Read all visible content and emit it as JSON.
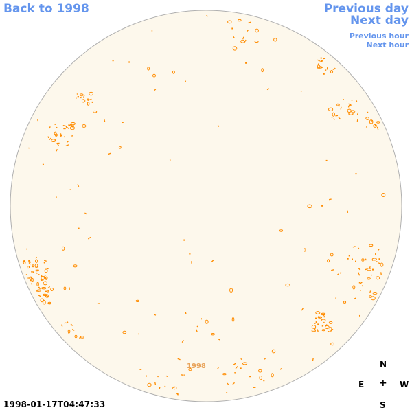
{
  "navigation": {
    "back_label": "Back to 1998",
    "previous_day_label": "Previous day",
    "next_day_label": "Next day",
    "previous_hour_label": "Previous hour",
    "next_hour_label": "Next hour",
    "link_color": "#6495ed"
  },
  "disk": {
    "fill_color": "#fdf8ec",
    "outline_color": "#b0b0b0",
    "feature_color": "#ff8c00",
    "year_link_label": "1998",
    "year_link_color": "#e8a35a"
  },
  "observation": {
    "timestamp": "1998-01-17T04:47:33"
  },
  "compass": {
    "north": "N",
    "east": "E",
    "center": "+",
    "west": "W",
    "south": "S"
  }
}
